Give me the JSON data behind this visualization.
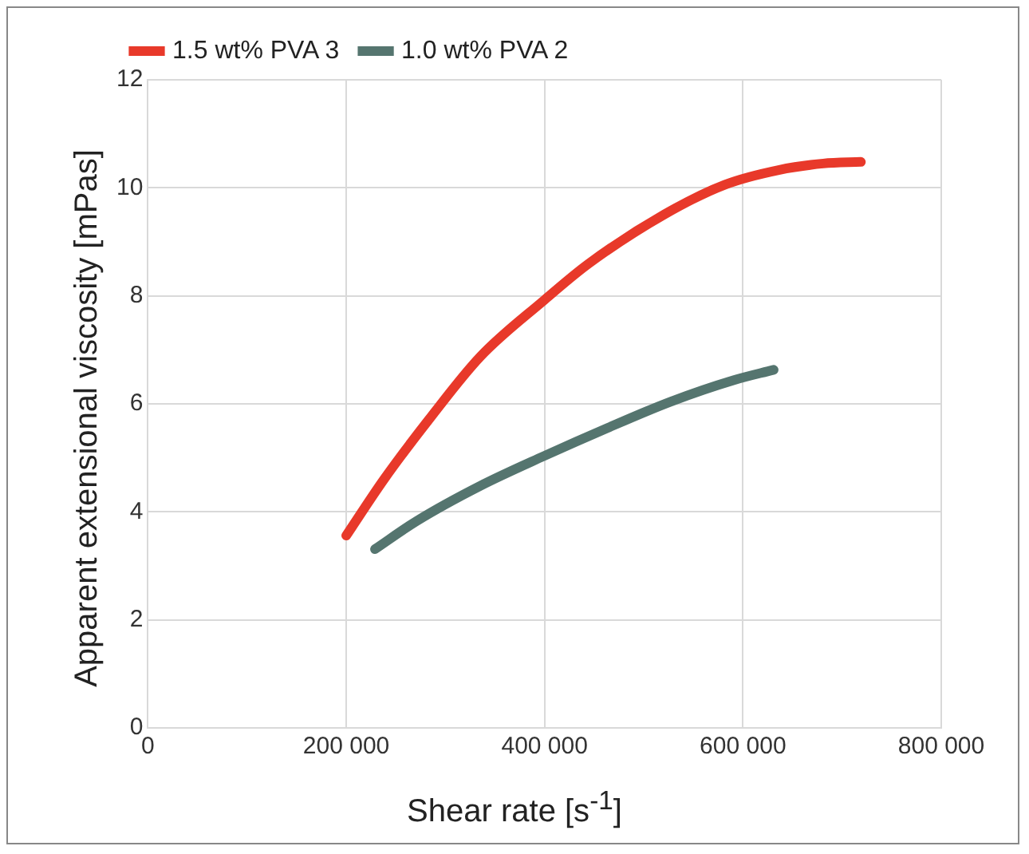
{
  "chart_data": {
    "type": "line",
    "xlabel": "Shear rate [s$^{-1}$]",
    "ylabel": "Apparent extensional viscosity [mPas]",
    "xlim": [
      0,
      800000
    ],
    "xticks": [
      {
        "value": 0,
        "label": "0"
      },
      {
        "value": 200000,
        "label": "200 000"
      },
      {
        "value": 400000,
        "label": "400 000"
      },
      {
        "value": 600000,
        "label": "600 000"
      },
      {
        "value": 800000,
        "label": "800 000"
      }
    ],
    "ylim": [
      0,
      12
    ],
    "yticks": [
      0,
      2,
      4,
      6,
      8,
      10,
      12
    ],
    "grid": true,
    "legend": "top left",
    "marker": "none",
    "line_style": "solid",
    "series": [
      {
        "name": "1.5 wt% PVA 3",
        "color": "#e8392a",
        "x": [
          200000,
          238000,
          283000,
          335000,
          399000,
          444000,
          521000,
          582000,
          636000,
          681000,
          719000
        ],
        "values": [
          3.56,
          4.6,
          5.7,
          6.87,
          7.91,
          8.59,
          9.51,
          10.06,
          10.33,
          10.45,
          10.48
        ]
      },
      {
        "name": "1.0 wt% PVA 2",
        "color": "#55756f",
        "x": [
          229000,
          271000,
          335000,
          399000,
          463000,
          527000,
          591000,
          631000
        ],
        "values": [
          3.31,
          3.83,
          4.48,
          5.03,
          5.55,
          6.04,
          6.44,
          6.63
        ]
      }
    ]
  }
}
